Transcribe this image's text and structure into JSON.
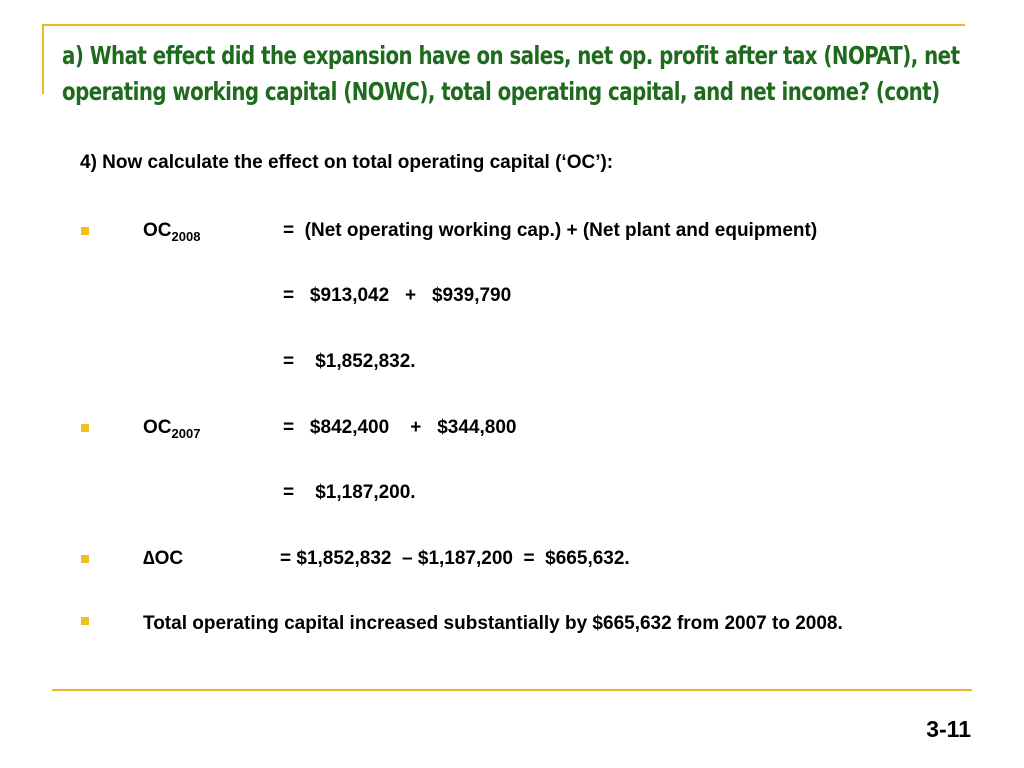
{
  "slide": {
    "title_line1": "a) What effect did the expansion have on sales, net op. profit after tax (NOPAT), net",
    "title_line2": "operating working capital (NOWC), total operating capital, and net income? (cont)",
    "intro": "4) Now calculate the effect on total operating capital (‘OC’):",
    "oc2008": {
      "label": "OC",
      "year": "2008",
      "line1": "=  (Net operating working cap.) + (Net plant and equipment)",
      "line2": "=   $913,042   +   $939,790",
      "line3": "=    $1,852,832."
    },
    "oc2007": {
      "label": "OC",
      "year": "2007",
      "line1": "=   $842,400    +   $344,800",
      "line2": "=    $1,187,200."
    },
    "delta": {
      "label": "∆OC",
      "line1": "= $1,852,832  – $1,187,200  =  $665,632."
    },
    "conclusion": "Total operating capital increased substantially by $665,632 from 2007 to 2008.",
    "page_number": "3-11"
  },
  "colors": {
    "title": "#1e6b1e",
    "accent_gold": "#e8b923",
    "bullet": "#f0c020",
    "text": "#000000"
  }
}
